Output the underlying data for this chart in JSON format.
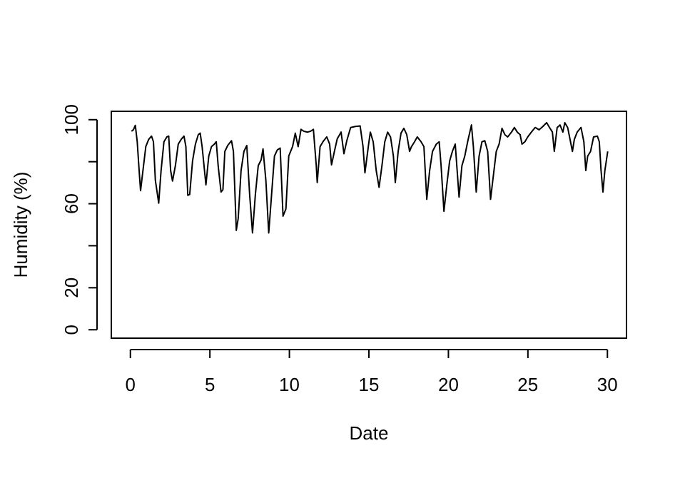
{
  "chart_data": {
    "type": "line",
    "xlabel": "Date",
    "ylabel": "Humidity (%)",
    "xlim": [
      -1.2,
      31.2
    ],
    "ylim": [
      -4,
      104
    ],
    "xticks": [
      0,
      5,
      10,
      15,
      20,
      25,
      30
    ],
    "yticks": [
      0,
      20,
      {
        "value": 40,
        "label": null
      },
      60,
      {
        "value": 80,
        "label": null
      },
      100
    ],
    "x": [
      0.07,
      0.19,
      0.31,
      0.43,
      0.55,
      0.64,
      0.79,
      0.97,
      1.15,
      1.33,
      1.45,
      1.57,
      1.78,
      1.93,
      2.11,
      2.29,
      2.41,
      2.53,
      2.65,
      2.83,
      3.01,
      3.19,
      3.37,
      3.49,
      3.61,
      3.73,
      3.91,
      4.09,
      4.27,
      4.39,
      4.51,
      4.75,
      4.93,
      5.1,
      5.28,
      5.4,
      5.52,
      5.7,
      5.82,
      5.94,
      6.12,
      6.36,
      6.48,
      6.66,
      6.78,
      6.96,
      7.14,
      7.32,
      7.5,
      7.68,
      7.86,
      8.04,
      8.22,
      8.34,
      8.52,
      8.7,
      8.88,
      9.06,
      9.24,
      9.42,
      9.6,
      9.78,
      9.96,
      10.2,
      10.37,
      10.55,
      10.73,
      10.91,
      11.15,
      11.33,
      11.51,
      11.69,
      11.75,
      11.93,
      12.11,
      12.35,
      12.53,
      12.65,
      12.83,
      13.01,
      13.25,
      13.43,
      13.61,
      13.85,
      14.15,
      14.45,
      14.63,
      14.75,
      14.99,
      15.09,
      15.27,
      15.46,
      15.64,
      15.82,
      16.0,
      16.18,
      16.36,
      16.54,
      16.66,
      16.84,
      17.02,
      17.2,
      17.38,
      17.56,
      17.68,
      17.87,
      18.04,
      18.28,
      18.46,
      18.64,
      18.82,
      19.0,
      19.24,
      19.42,
      19.54,
      19.72,
      19.9,
      20.08,
      20.25,
      20.43,
      20.55,
      20.67,
      20.85,
      21.03,
      21.21,
      21.45,
      21.57,
      21.75,
      21.93,
      22.11,
      22.29,
      22.47,
      22.65,
      22.83,
      23.01,
      23.19,
      23.37,
      23.55,
      23.73,
      23.97,
      24.15,
      24.33,
      24.51,
      24.63,
      24.81,
      24.99,
      25.22,
      25.46,
      25.7,
      25.94,
      26.18,
      26.36,
      26.54,
      26.66,
      26.84,
      27.02,
      27.2,
      27.32,
      27.5,
      27.68,
      27.8,
      27.92,
      28.1,
      28.34,
      28.52,
      28.64,
      28.76,
      28.94,
      29.13,
      29.37,
      29.49,
      29.6,
      29.72,
      29.84,
      30.02
    ],
    "series": [
      {
        "color": "#000000",
        "values": [
          94.5,
          95.2,
          97.3,
          89.5,
          75.8,
          66.2,
          75.8,
          87.2,
          90.6,
          92.2,
          89.5,
          71.2,
          60.3,
          75.8,
          89.5,
          91.8,
          92.2,
          75.8,
          70.8,
          78.1,
          88.4,
          90.6,
          92.2,
          87.2,
          64.0,
          64.4,
          80.4,
          88.4,
          92.9,
          93.6,
          87.2,
          69.0,
          82.7,
          87.2,
          88.4,
          89.5,
          78.1,
          65.6,
          66.7,
          84.9,
          87.7,
          90.0,
          84.9,
          47.3,
          53.0,
          75.8,
          84.9,
          87.7,
          64.4,
          46.1,
          64.4,
          78.1,
          80.8,
          86.1,
          71.2,
          46.1,
          64.4,
          82.7,
          85.6,
          86.5,
          54.1,
          57.5,
          82.7,
          87.2,
          93.6,
          87.2,
          95.4,
          94.5,
          94.1,
          94.5,
          95.4,
          78.1,
          70.1,
          87.2,
          89.5,
          91.8,
          88.4,
          78.5,
          84.9,
          90.9,
          94.1,
          83.8,
          90.0,
          96.3,
          96.8,
          97.0,
          87.2,
          74.7,
          88.8,
          94.1,
          89.5,
          75.8,
          67.8,
          78.1,
          89.5,
          94.1,
          91.8,
          82.7,
          70.1,
          84.9,
          93.6,
          95.9,
          92.9,
          84.9,
          87.2,
          89.5,
          91.8,
          89.5,
          87.2,
          62.1,
          75.8,
          84.9,
          88.4,
          89.5,
          78.1,
          56.4,
          69.0,
          80.4,
          84.9,
          88.4,
          75.8,
          63.2,
          78.1,
          82.7,
          89.5,
          97.5,
          87.2,
          65.6,
          82.7,
          89.5,
          90.0,
          84.9,
          62.1,
          73.5,
          84.9,
          88.4,
          95.9,
          92.9,
          91.8,
          94.1,
          96.3,
          94.1,
          92.9,
          88.4,
          89.5,
          91.8,
          94.1,
          96.3,
          95.2,
          96.8,
          98.6,
          96.3,
          94.1,
          84.9,
          96.3,
          97.5,
          94.1,
          98.6,
          96.3,
          89.5,
          84.9,
          90.6,
          94.1,
          96.3,
          89.5,
          75.8,
          82.7,
          84.9,
          91.8,
          92.2,
          89.5,
          75.8,
          65.6,
          75.8,
          84.9
        ]
      }
    ]
  }
}
